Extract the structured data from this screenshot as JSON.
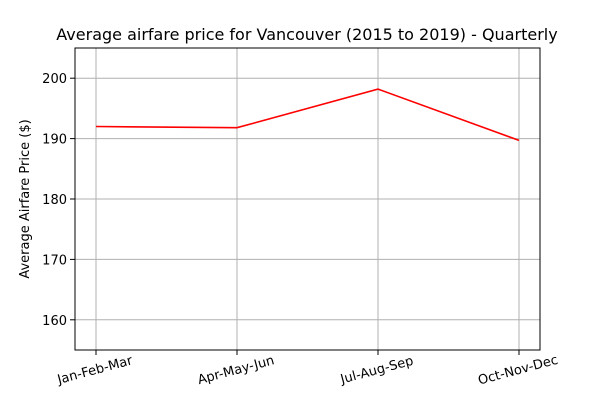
{
  "chart_data": {
    "type": "line",
    "title": "Average airfare price for Vancouver (2015 to 2019) - Quarterly",
    "xlabel": "",
    "ylabel": "Average Airfare Price ($)",
    "categories": [
      "Jan-Feb-Mar",
      "Apr-May-Jun",
      "Jul-Aug-Sep",
      "Oct-Nov-Dec"
    ],
    "series": [
      {
        "values": [
          192.0,
          191.8,
          198.2,
          189.7
        ],
        "color": "#ff0000"
      }
    ],
    "ylim": [
      155,
      205
    ],
    "yticks": [
      160,
      170,
      180,
      190,
      200
    ],
    "grid": true,
    "legend": "none"
  }
}
